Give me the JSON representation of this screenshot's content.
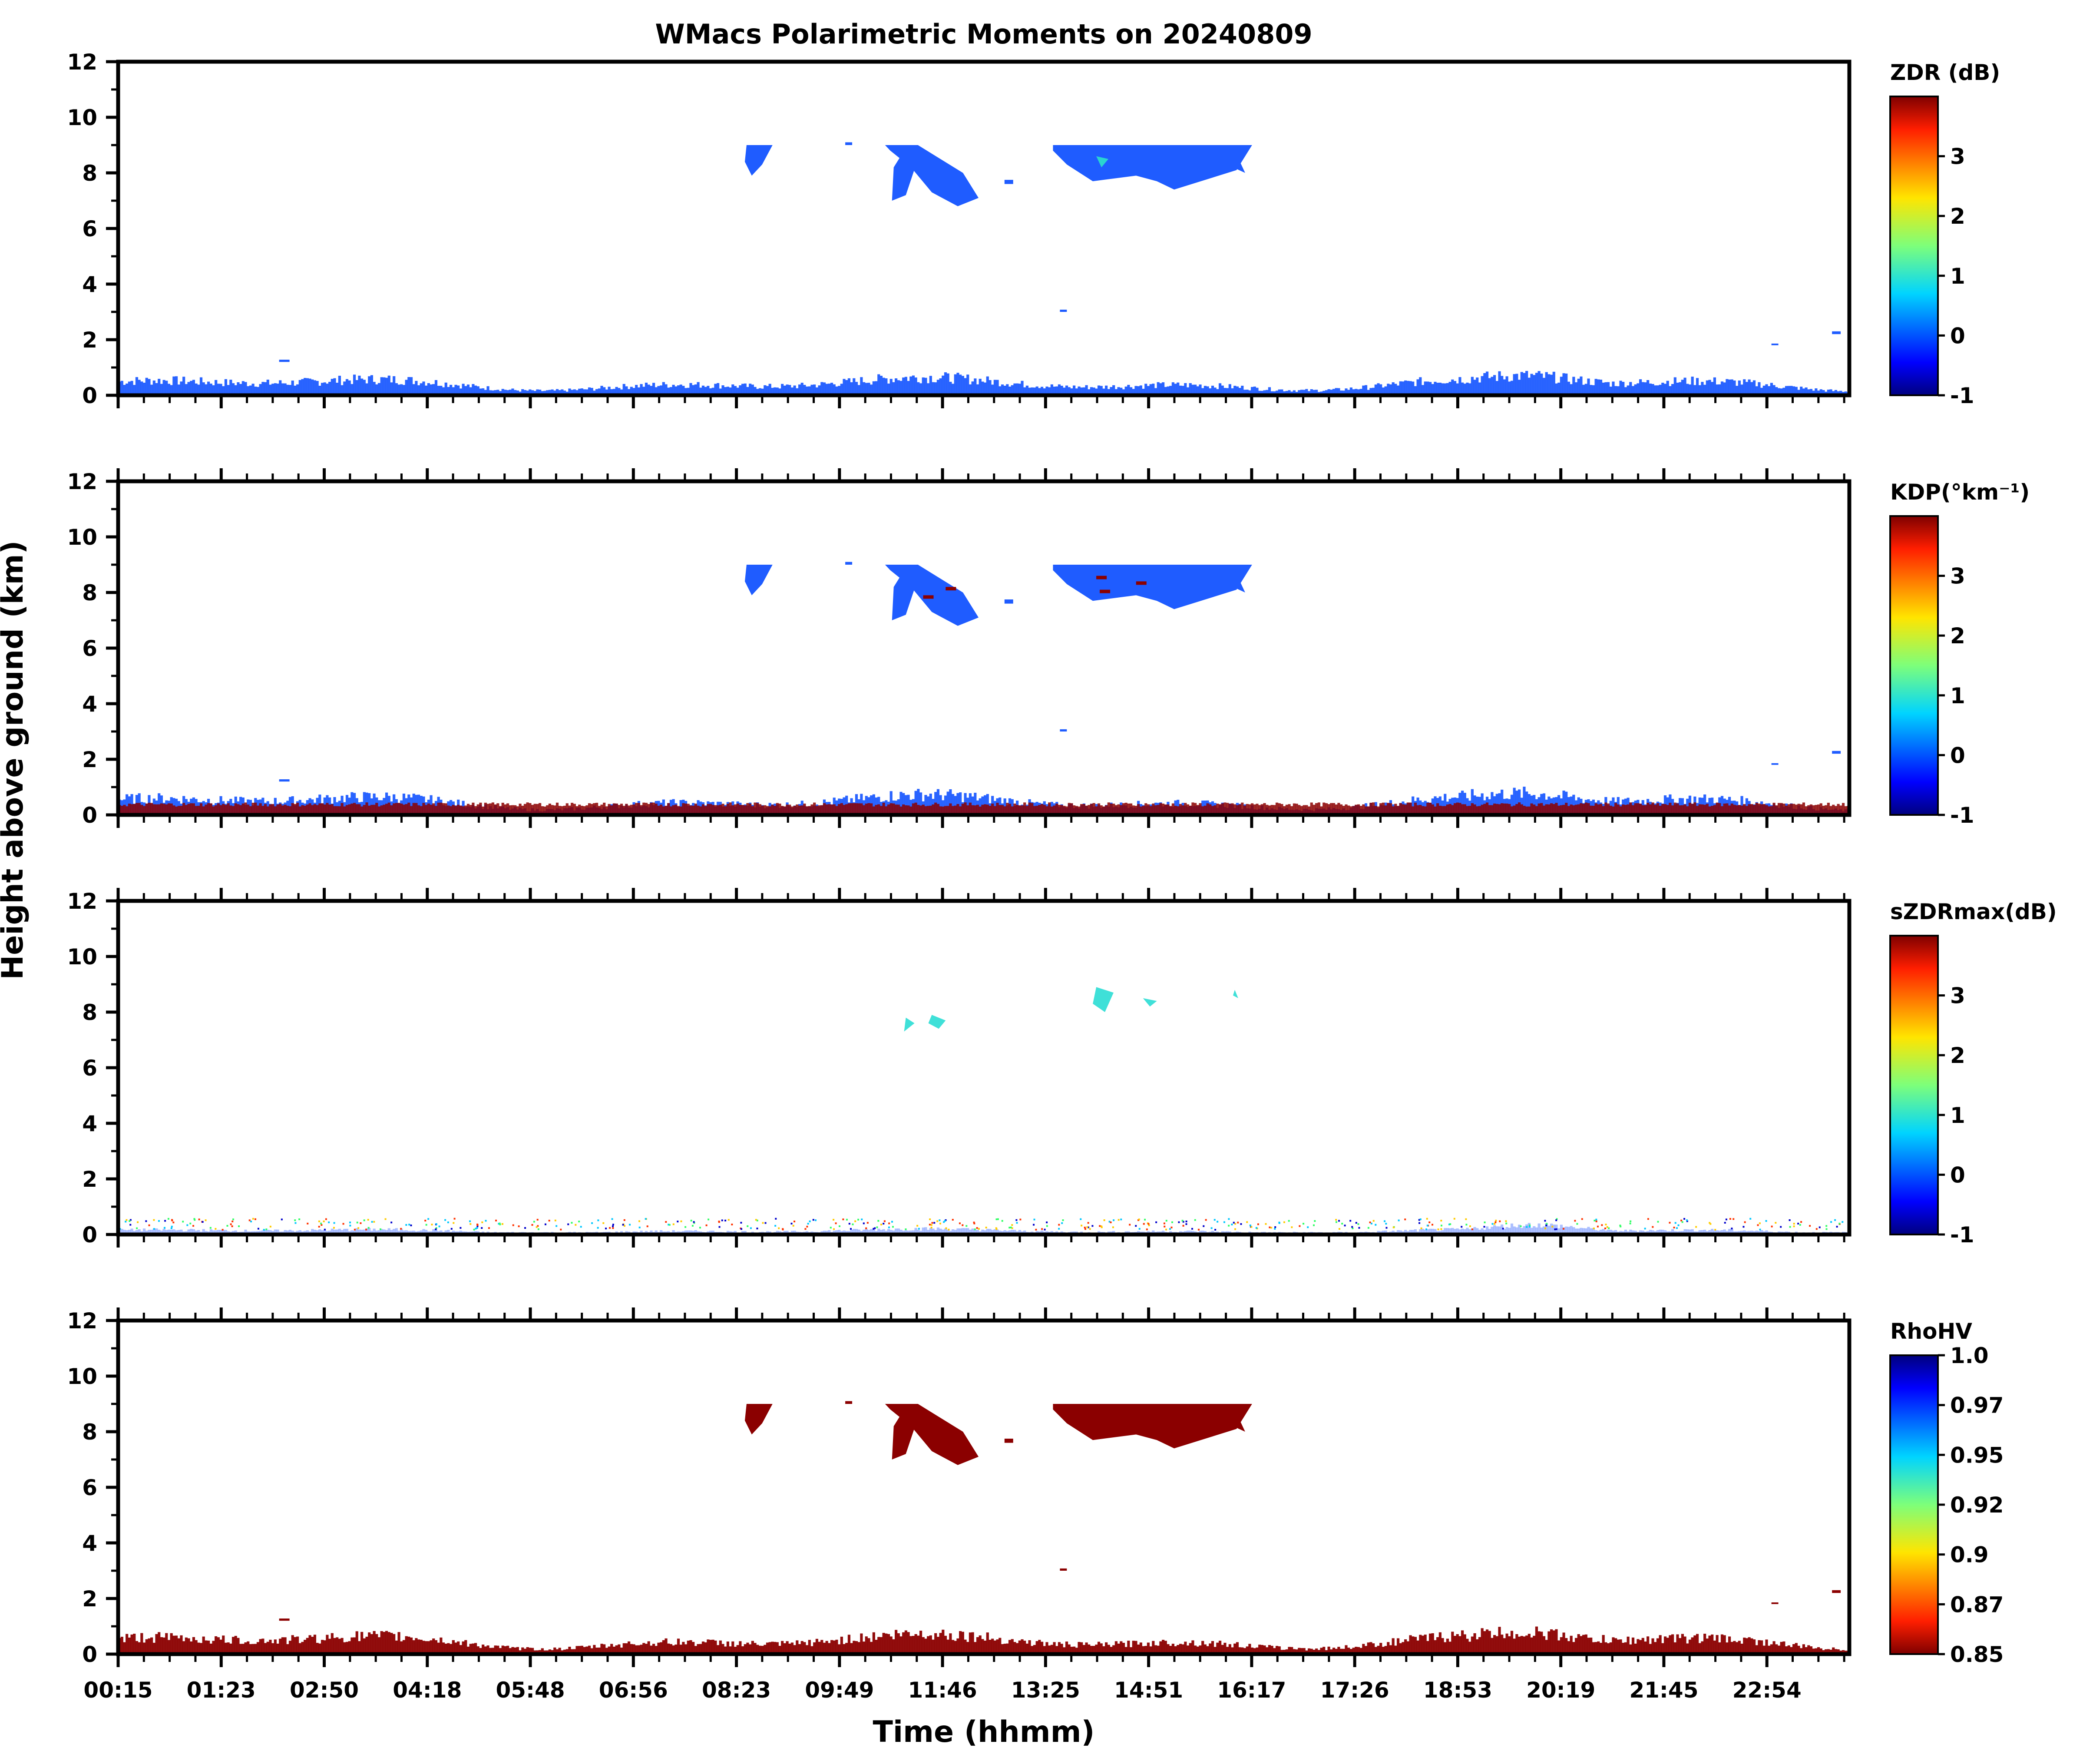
{
  "title": "WMacs Polarimetric Moments on 20240809",
  "chart_data": {
    "type": "heatmap",
    "xlabel": "Time (hhmm)",
    "ylabel": "Height above ground (km)",
    "x_ticks": [
      "00:15",
      "01:23",
      "02:50",
      "04:18",
      "05:48",
      "06:56",
      "08:23",
      "09:49",
      "11:46",
      "13:25",
      "14:51",
      "16:17",
      "17:26",
      "18:53",
      "20:19",
      "21:45",
      "22:54"
    ],
    "y_ticks": [
      0,
      2,
      4,
      6,
      8,
      10,
      12
    ],
    "ylim": [
      0,
      12
    ],
    "panels": [
      {
        "colorbar_title": "ZDR (dB)",
        "colorbar_ticks": [
          "3",
          "2",
          "1",
          "0",
          "-1"
        ],
        "colormap": "jet",
        "cloud_color": "#1f5cff",
        "boundary_color": "#1f5cff",
        "boundary_top_km": 0.8,
        "accent_color": "#2ad4d0"
      },
      {
        "colorbar_title": "KDP(°km⁻¹)",
        "colorbar_ticks": [
          "3",
          "2",
          "1",
          "0",
          "-1"
        ],
        "colormap": "jet",
        "cloud_color": "#1f5cff",
        "boundary_color": "#1f5cff",
        "boundary_top_km": 0.9,
        "boundary_core_color": "#8b0000",
        "accent_color": "#8b0000"
      },
      {
        "colorbar_title": "sZDRmax(dB)",
        "colorbar_ticks": [
          "3",
          "2",
          "1",
          "0",
          "-1"
        ],
        "colormap": "jet",
        "cloud_color": "#3fe0d8",
        "boundary_color": "#6a8cff",
        "boundary_top_km": 0.25,
        "accent_color": "#3fe0d8"
      },
      {
        "colorbar_title": "RhoHV",
        "colorbar_ticks": [
          "1.0",
          "0.97",
          "0.95",
          "0.92",
          "0.9",
          "0.87",
          "0.85"
        ],
        "colormap": "jet_r",
        "cloud_color": "#8b0000",
        "boundary_color": "#8b0000",
        "boundary_top_km": 0.9,
        "accent_color": "#8b0000"
      }
    ]
  }
}
